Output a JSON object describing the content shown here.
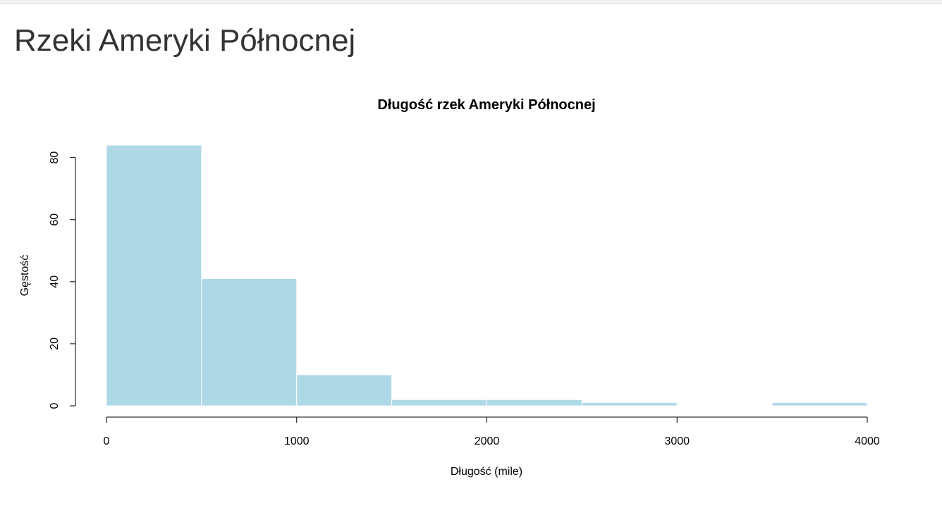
{
  "page": {
    "title": "Rzeki Ameryki Północnej"
  },
  "chart_data": {
    "type": "bar",
    "title": "Długość rzek Ameryki Północnej",
    "xlabel": "Długość (mile)",
    "ylabel": "Gęstość",
    "bins": [
      {
        "start": 0,
        "end": 500,
        "value": 84
      },
      {
        "start": 500,
        "end": 1000,
        "value": 41
      },
      {
        "start": 1000,
        "end": 1500,
        "value": 10
      },
      {
        "start": 1500,
        "end": 2000,
        "value": 2
      },
      {
        "start": 2000,
        "end": 2500,
        "value": 2
      },
      {
        "start": 2500,
        "end": 3000,
        "value": 1
      },
      {
        "start": 3000,
        "end": 3500,
        "value": 0
      },
      {
        "start": 3500,
        "end": 4000,
        "value": 1
      }
    ],
    "xlim": [
      0,
      4000
    ],
    "ylim": [
      0,
      84
    ],
    "x_ticks": [
      "0",
      "1000",
      "2000",
      "3000",
      "4000"
    ],
    "y_ticks": [
      "0",
      "20",
      "40",
      "60",
      "80"
    ],
    "bar_color": "#add8e6",
    "bar_border_color": "#ffffff",
    "grid": false,
    "legend": "none"
  }
}
